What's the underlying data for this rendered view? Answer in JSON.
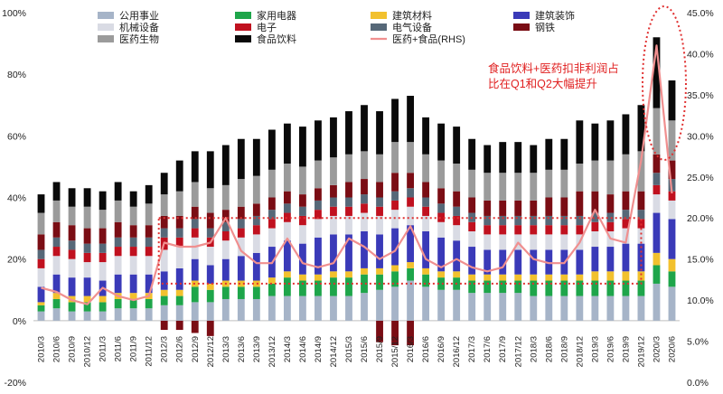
{
  "chart_data": {
    "type": "bar",
    "stacked": true,
    "secondary_line": true,
    "categories": [
      "2010/3",
      "2010/6",
      "2010/9",
      "2010/12",
      "2011/3",
      "2011/6",
      "2011/9",
      "2011/12",
      "2012/3",
      "2012/6",
      "2012/9",
      "2012/12",
      "2013/3",
      "2013/6",
      "2013/9",
      "2013/12",
      "2014/3",
      "2014/6",
      "2014/9",
      "2014/12",
      "2015/3",
      "2015/6",
      "2015/9",
      "2015/12",
      "2016/3",
      "2016/6",
      "2016/9",
      "2016/12",
      "2017/3",
      "2017/6",
      "2017/9",
      "2017/12",
      "2018/3",
      "2018/6",
      "2018/9",
      "2018/12",
      "2019/3",
      "2019/6",
      "2019/9",
      "2019/12",
      "2020/3",
      "2020/6"
    ],
    "y_left": {
      "min": -20,
      "max": 100,
      "ticks": [
        "-20%",
        "0%",
        "20%",
        "40%",
        "60%",
        "80%",
        "100%"
      ],
      "tick_values": [
        -20,
        0,
        20,
        40,
        60,
        80,
        100
      ]
    },
    "y_right": {
      "min": 0,
      "max": 45,
      "ticks": [
        "0.0%",
        "5.0%",
        "10.0%",
        "15.0%",
        "20.0%",
        "25.0%",
        "30.0%",
        "35.0%",
        "40.0%",
        "45.0%"
      ],
      "tick_values": [
        0,
        5,
        10,
        15,
        20,
        25,
        30,
        35,
        40,
        45
      ]
    },
    "legend": [
      {
        "name": "公用事业",
        "color": "#a6b4c8",
        "kind": "bar"
      },
      {
        "name": "家用电器",
        "color": "#1ea54a",
        "kind": "bar"
      },
      {
        "name": "建筑材料",
        "color": "#f2c12e",
        "kind": "bar"
      },
      {
        "name": "建筑装饰",
        "color": "#3a3ab8",
        "kind": "bar"
      },
      {
        "name": "机械设备",
        "color": "#d9dbe4",
        "kind": "bar"
      },
      {
        "name": "电子",
        "color": "#c0111f",
        "kind": "bar"
      },
      {
        "name": "电气设备",
        "color": "#566878",
        "kind": "bar"
      },
      {
        "name": "钢铁",
        "color": "#7a0d14",
        "kind": "bar"
      },
      {
        "name": "医药生物",
        "color": "#9b9b9b",
        "kind": "bar"
      },
      {
        "name": "食品饮料",
        "color": "#0a0a0a",
        "kind": "bar"
      },
      {
        "name": "医药+食品(RHS)",
        "color": "#f08f8f",
        "kind": "line"
      }
    ],
    "series": [
      {
        "name": "公用事业",
        "values": [
          3,
          4,
          3,
          3,
          3,
          4,
          4,
          4,
          5,
          5,
          6,
          6,
          7,
          7,
          7,
          8,
          8,
          8,
          8,
          8,
          8,
          9,
          10,
          11,
          13,
          11,
          10,
          10,
          9,
          9,
          9,
          9,
          8,
          8,
          8,
          8,
          8,
          8,
          8,
          8,
          12,
          11
        ]
      },
      {
        "name": "家用电器",
        "values": [
          2,
          3,
          3,
          3,
          3,
          3,
          3,
          3,
          3,
          3,
          5,
          4,
          4,
          4,
          4,
          4,
          6,
          5,
          5,
          6,
          6,
          6,
          5,
          5,
          4,
          4,
          4,
          4,
          4,
          4,
          4,
          4,
          5,
          5,
          5,
          5,
          5,
          5,
          5,
          5,
          6,
          5
        ]
      },
      {
        "name": "建筑材料",
        "values": [
          1,
          2,
          2,
          2,
          2,
          2,
          2,
          2,
          2,
          2,
          2,
          2,
          2,
          2,
          2,
          2,
          2,
          2,
          2,
          2,
          2,
          2,
          2,
          2,
          2,
          2,
          2,
          2,
          2,
          2,
          2,
          2,
          2,
          2,
          2,
          2,
          3,
          3,
          3,
          3,
          4,
          4
        ]
      },
      {
        "name": "建筑装饰",
        "values": [
          5,
          6,
          6,
          6,
          5,
          6,
          6,
          6,
          6,
          7,
          7,
          6,
          7,
          8,
          9,
          10,
          10,
          10,
          12,
          12,
          12,
          12,
          11,
          12,
          12,
          12,
          11,
          10,
          9,
          8,
          8,
          8,
          8,
          8,
          8,
          8,
          8,
          8,
          9,
          9,
          13,
          13
        ]
      },
      {
        "name": "机械设备",
        "values": [
          6,
          6,
          6,
          5,
          6,
          6,
          6,
          6,
          7,
          7,
          7,
          6,
          6,
          6,
          6,
          6,
          6,
          6,
          6,
          6,
          6,
          6,
          6,
          6,
          6,
          5,
          5,
          5,
          5,
          5,
          5,
          5,
          5,
          5,
          5,
          5,
          5,
          5,
          5,
          5,
          6,
          6
        ]
      },
      {
        "name": "电子",
        "values": [
          3,
          3,
          3,
          3,
          3,
          3,
          3,
          3,
          4,
          3,
          3,
          3,
          3,
          3,
          3,
          3,
          3,
          3,
          3,
          3,
          3,
          3,
          3,
          3,
          3,
          3,
          3,
          3,
          3,
          3,
          3,
          3,
          3,
          3,
          3,
          3,
          3,
          3,
          3,
          3,
          3,
          3
        ]
      },
      {
        "name": "电气设备",
        "values": [
          3,
          3,
          3,
          3,
          3,
          3,
          3,
          3,
          3,
          3,
          3,
          3,
          3,
          3,
          3,
          3,
          3,
          3,
          3,
          3,
          3,
          3,
          3,
          3,
          3,
          3,
          3,
          3,
          3,
          3,
          3,
          3,
          3,
          3,
          3,
          3,
          3,
          3,
          3,
          3,
          4,
          4
        ]
      },
      {
        "name": "钢铁",
        "values": [
          5,
          5,
          5,
          5,
          5,
          5,
          4,
          4,
          4,
          4,
          4,
          5,
          4,
          4,
          4,
          4,
          4,
          4,
          4,
          4,
          5,
          5,
          5,
          6,
          5,
          5,
          5,
          5,
          5,
          5,
          5,
          5,
          5,
          6,
          6,
          8,
          7,
          6,
          6,
          6,
          6,
          6
        ]
      },
      {
        "name": "医药生物",
        "values": [
          7,
          7,
          6,
          7,
          6,
          7,
          6,
          7,
          7,
          8,
          8,
          8,
          8,
          9,
          9,
          9,
          9,
          9,
          9,
          9,
          9,
          9,
          9,
          10,
          10,
          9,
          9,
          9,
          9,
          9,
          9,
          9,
          9,
          9,
          9,
          9,
          10,
          11,
          12,
          13,
          15,
          13
        ]
      },
      {
        "name": "食品饮料",
        "values": [
          6,
          6,
          6,
          6,
          6,
          6,
          5,
          6,
          7,
          10,
          10,
          12,
          13,
          13,
          12,
          13,
          13,
          13,
          13,
          13,
          14,
          15,
          14,
          14,
          15,
          12,
          12,
          12,
          10,
          9,
          10,
          10,
          9,
          10,
          10,
          14,
          12,
          13,
          13,
          15,
          23,
          13
        ]
      },
      {
        "name": "医药+食品(RHS)",
        "axis": "right",
        "values": [
          11.5,
          11,
          10,
          9.5,
          11.5,
          10.5,
          10,
          10.5,
          17,
          16.5,
          16.5,
          17,
          20,
          16,
          14.5,
          14.5,
          17.5,
          14.5,
          14,
          14.5,
          17.5,
          16.5,
          15,
          16,
          19,
          15,
          14,
          15,
          14,
          13.5,
          14,
          17,
          15,
          14.5,
          14.5,
          17,
          21,
          17.5,
          17,
          27,
          41,
          23
        ]
      }
    ],
    "negative_segments": {
      "2012/3": -3,
      "2012/6": -3,
      "2012/9": -4,
      "2012/12": -5,
      "2015/9": -7,
      "2015/12": -8,
      "2016/3": -8
    },
    "annotation": {
      "lines": [
        "食品饮料+医药扣非利润占",
        "比在Q1和Q2大幅提升"
      ],
      "color": "#e02020"
    },
    "dotted_rectangle_right_values": [
      12,
      20
    ]
  }
}
